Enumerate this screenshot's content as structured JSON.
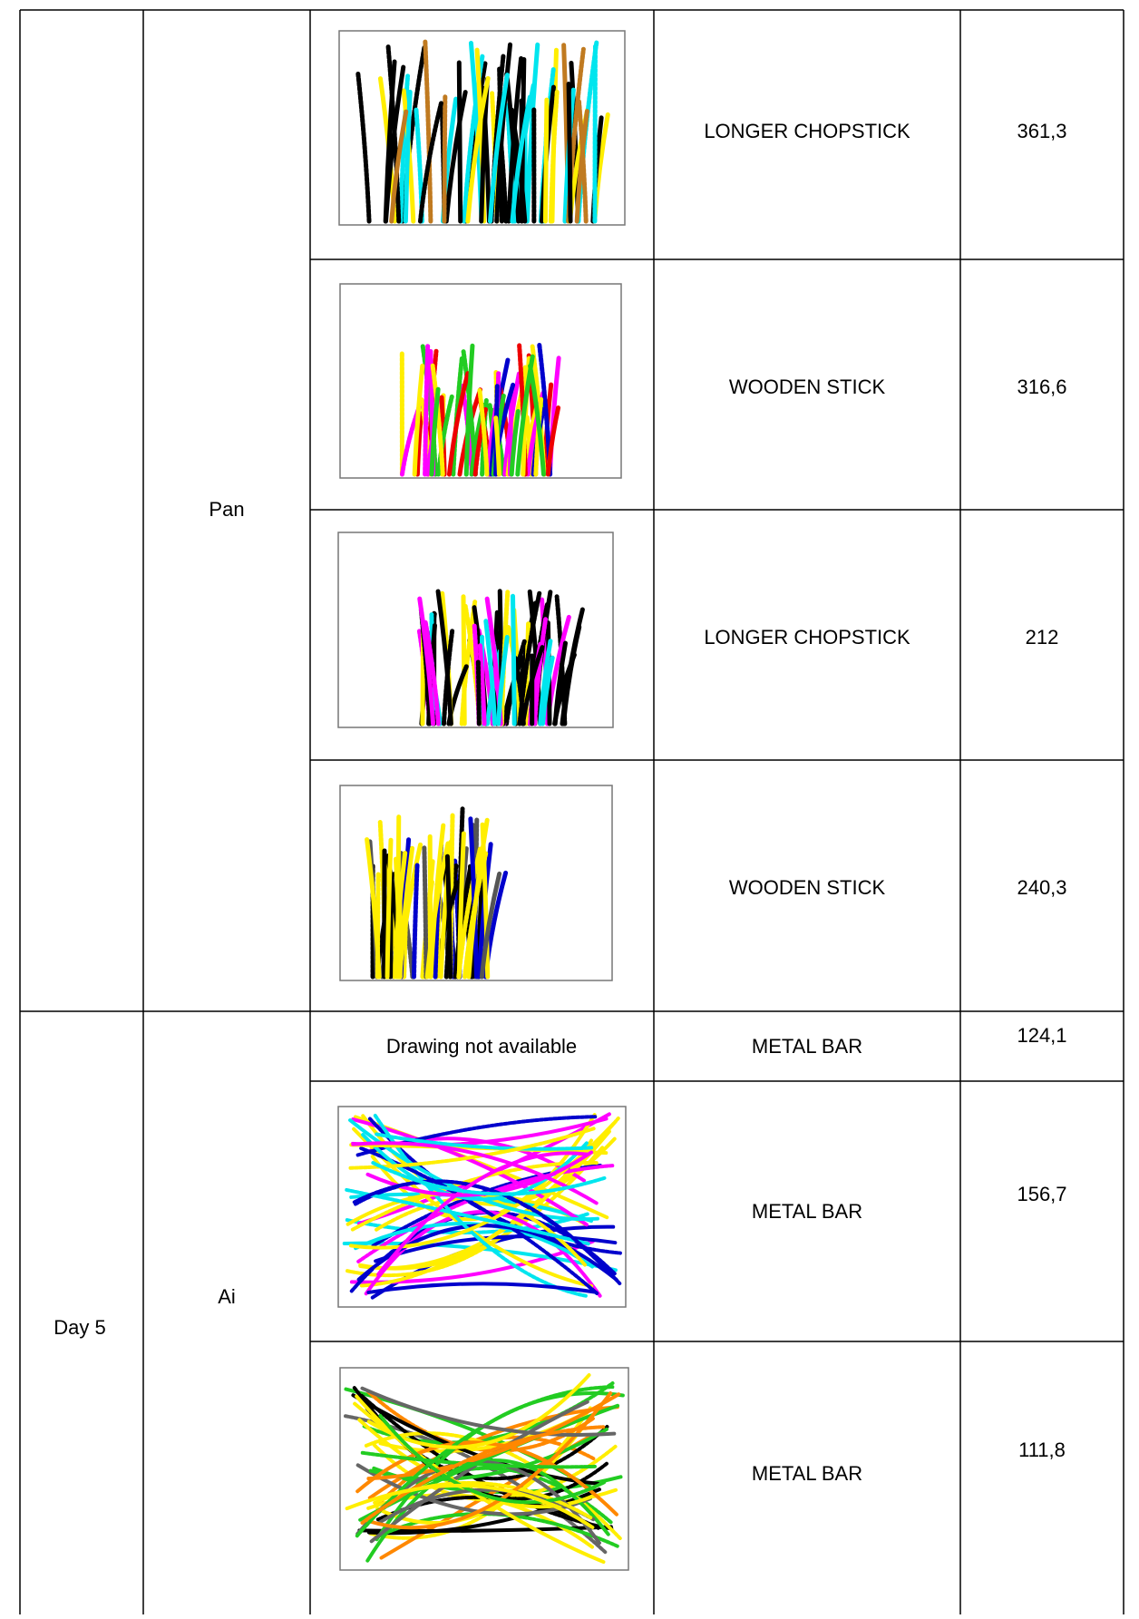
{
  "table": {
    "sections": [
      {
        "name": "Pan",
        "rows": [
          {
            "tool": "LONGER CHOPSTICK",
            "value": "361,3"
          },
          {
            "tool": "WOODEN STICK",
            "value": "316,6"
          },
          {
            "tool": "LONGER CHOPSTICK",
            "value": "212"
          },
          {
            "tool": "WOODEN STICK",
            "value": "240,3"
          }
        ]
      },
      {
        "day": "Day 5",
        "name": "Ai",
        "rows": [
          {
            "drawing": "Drawing not available",
            "tool": "METAL BAR",
            "value": "124,1"
          },
          {
            "tool": "METAL BAR",
            "value": "156,7"
          },
          {
            "tool": "METAL BAR",
            "value": "111,8"
          }
        ]
      }
    ]
  }
}
